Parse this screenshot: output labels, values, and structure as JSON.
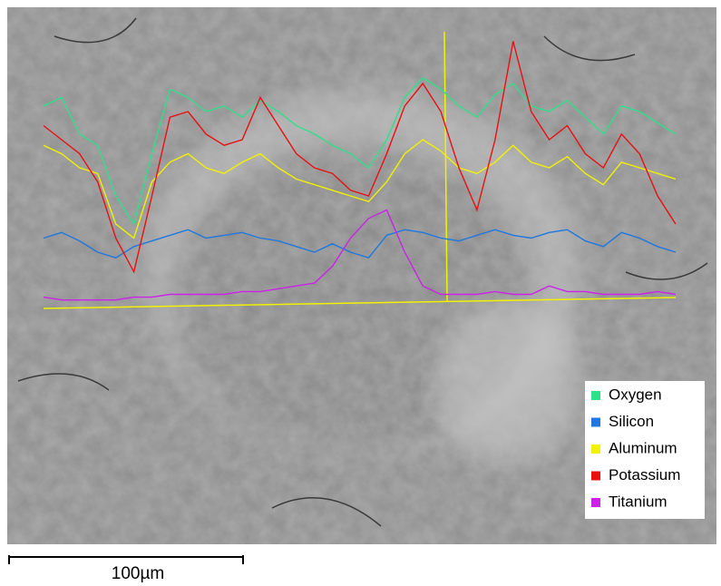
{
  "chart_data": {
    "type": "line",
    "ylim": [
      0,
      100
    ],
    "series": [
      {
        "name": "Oxygen",
        "color": "#2ee08a",
        "values": [
          72,
          75,
          62,
          58,
          40,
          30,
          55,
          78,
          75,
          70,
          72,
          68,
          74,
          70,
          65,
          62,
          58,
          55,
          50,
          60,
          75,
          82,
          78,
          72,
          68,
          76,
          80,
          72,
          70,
          74,
          68,
          62,
          72,
          70,
          66,
          62
        ]
      },
      {
        "name": "Silicon",
        "color": "#1f78e0",
        "values": [
          25,
          27,
          24,
          20,
          18,
          22,
          24,
          26,
          28,
          25,
          26,
          27,
          25,
          24,
          22,
          20,
          23,
          20,
          18,
          26,
          28,
          27,
          25,
          24,
          26,
          28,
          26,
          25,
          27,
          28,
          24,
          22,
          27,
          25,
          22,
          20
        ]
      },
      {
        "name": "Aluminum",
        "color": "#f2f200",
        "values": [
          58,
          55,
          50,
          48,
          30,
          25,
          45,
          52,
          55,
          50,
          48,
          52,
          55,
          50,
          46,
          44,
          42,
          40,
          38,
          45,
          55,
          60,
          56,
          50,
          48,
          52,
          58,
          52,
          50,
          54,
          48,
          44,
          52,
          50,
          48,
          46
        ]
      },
      {
        "name": "Potassium",
        "color": "#e81010",
        "values": [
          65,
          60,
          55,
          45,
          25,
          13,
          40,
          68,
          70,
          62,
          58,
          60,
          75,
          65,
          55,
          50,
          48,
          42,
          40,
          55,
          72,
          80,
          70,
          50,
          35,
          60,
          95,
          70,
          60,
          65,
          55,
          50,
          62,
          55,
          40,
          30
        ]
      },
      {
        "name": "Titanium",
        "color": "#cc22e8",
        "values": [
          4,
          3,
          3,
          3,
          3,
          4,
          4,
          5,
          5,
          5,
          5,
          6,
          6,
          7,
          8,
          9,
          15,
          25,
          32,
          35,
          20,
          8,
          5,
          5,
          5,
          6,
          5,
          5,
          8,
          6,
          6,
          5,
          5,
          5,
          6,
          5
        ]
      }
    ],
    "scale_bar": "100µm"
  }
}
